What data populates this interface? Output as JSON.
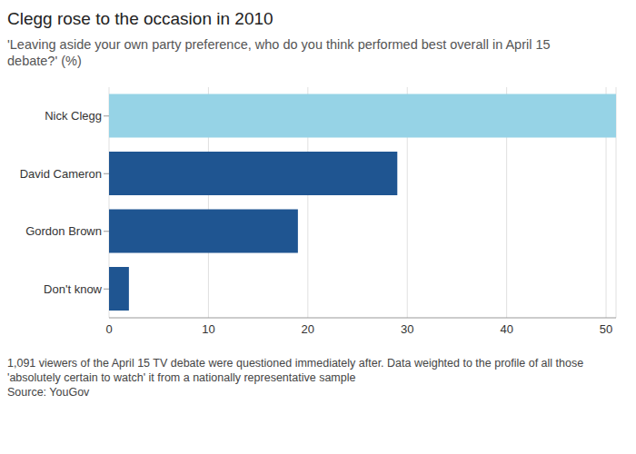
{
  "chart_data": {
    "type": "bar",
    "title": "Clegg rose to the occasion in 2010",
    "subtitle": "'Leaving aside your own party preference, who do you think performed best overall in April 15 debate?' (%)",
    "note": "1,091 viewers of the April 15 TV debate were questioned immediately after. Data weighted to the profile of all those 'absolutely certain to watch' it from a nationally representative sample",
    "source": "Source: YouGov",
    "categories": [
      "Nick Clegg",
      "David Cameron",
      "Gordon Brown",
      "Don't know"
    ],
    "values": [
      51,
      29,
      19,
      2
    ],
    "colors": [
      "#96d3e6",
      "#1f5591",
      "#1f5591",
      "#1f5591"
    ],
    "orientation": "horizontal",
    "xlim": [
      0,
      51
    ],
    "xticks": [
      0,
      10,
      20,
      30,
      40,
      50
    ],
    "grid": true
  }
}
